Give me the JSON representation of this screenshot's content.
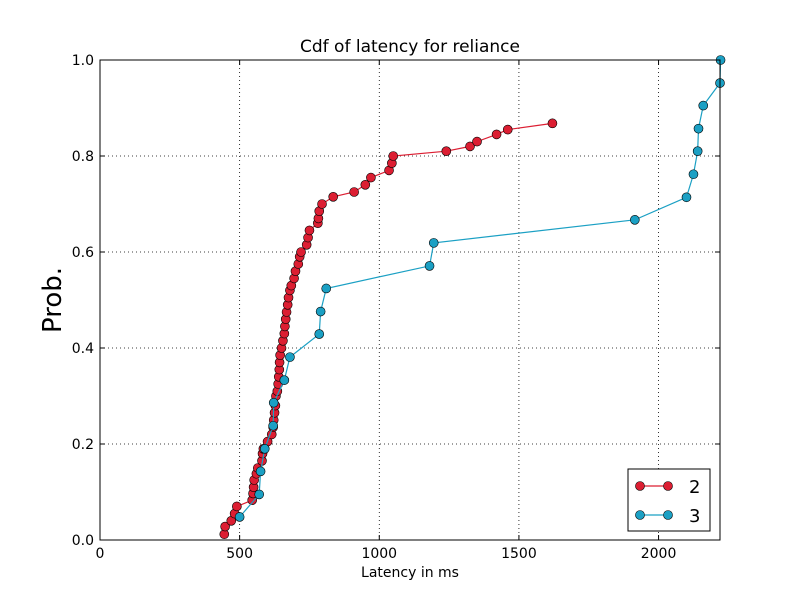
{
  "chart_data": {
    "type": "line",
    "title": "Cdf of latency for reliance",
    "xlabel": "Latency in ms",
    "ylabel": "Prob.",
    "xlim": [
      0,
      2220
    ],
    "ylim": [
      0,
      1.0
    ],
    "xticks": [
      0,
      500,
      1000,
      1500,
      2000
    ],
    "yticks": [
      0.0,
      0.2,
      0.4,
      0.6,
      0.8,
      1.0
    ],
    "ytick_labels": [
      "0.0",
      "0.2",
      "0.4",
      "0.6",
      "0.8",
      "1.0"
    ],
    "grid": true,
    "legend_position": "bottom-right",
    "series": [
      {
        "name": "2",
        "color": "#dc1e32",
        "x": [
          445,
          448,
          470,
          482,
          490,
          545,
          548,
          550,
          552,
          560,
          565,
          580,
          582,
          585,
          600,
          615,
          620,
          622,
          625,
          628,
          630,
          635,
          638,
          640,
          642,
          643,
          645,
          650,
          655,
          660,
          662,
          665,
          668,
          672,
          675,
          680,
          685,
          695,
          700,
          710,
          715,
          720,
          740,
          745,
          750,
          780,
          782,
          785,
          795,
          835,
          910,
          950,
          970,
          1035,
          1045,
          1050,
          1240,
          1325,
          1350,
          1420,
          1460,
          1620
        ],
        "y": [
          0.012,
          0.028,
          0.04,
          0.055,
          0.07,
          0.083,
          0.097,
          0.11,
          0.125,
          0.138,
          0.15,
          0.165,
          0.18,
          0.19,
          0.205,
          0.22,
          0.235,
          0.25,
          0.265,
          0.28,
          0.3,
          0.31,
          0.325,
          0.34,
          0.355,
          0.37,
          0.385,
          0.4,
          0.415,
          0.43,
          0.445,
          0.46,
          0.475,
          0.49,
          0.505,
          0.52,
          0.53,
          0.545,
          0.56,
          0.575,
          0.59,
          0.6,
          0.615,
          0.63,
          0.645,
          0.66,
          0.67,
          0.685,
          0.7,
          0.715,
          0.725,
          0.74,
          0.755,
          0.77,
          0.785,
          0.8,
          0.81,
          0.82,
          0.83,
          0.845,
          0.855,
          0.868
        ],
        "note": ""
      },
      {
        "name": "3",
        "color": "#1ba0c4",
        "x": [
          500,
          570,
          575,
          590,
          620,
          622,
          660,
          680,
          785,
          790,
          810,
          1180,
          1195,
          1915,
          2100,
          2125,
          2140,
          2143,
          2160,
          2220,
          2222
        ],
        "y": [
          0.048,
          0.095,
          0.143,
          0.19,
          0.238,
          0.286,
          0.333,
          0.381,
          0.429,
          0.476,
          0.524,
          0.571,
          0.619,
          0.667,
          0.714,
          0.762,
          0.81,
          0.857,
          0.905,
          0.952,
          1.0
        ]
      }
    ]
  }
}
